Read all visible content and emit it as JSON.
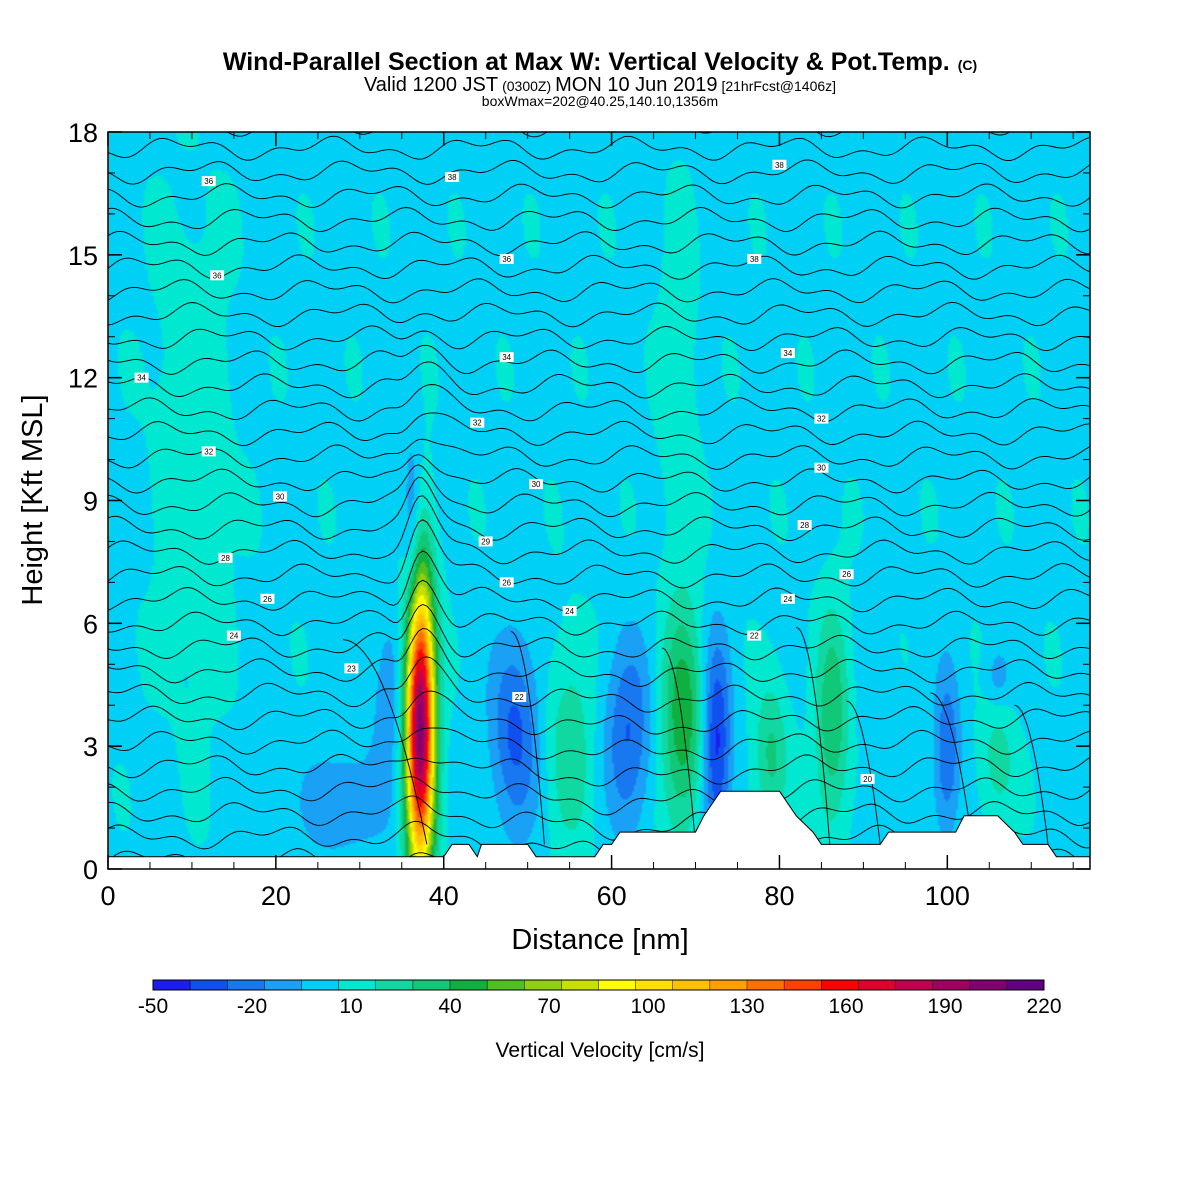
{
  "chart_data": {
    "type": "heatmap",
    "title": "Wind-Parallel Section at Max W: Vertical Velocity & Pot.Temp.",
    "title_mark": "(C)",
    "valid_main": "Valid 1200 JST",
    "valid_utc": "(0300Z)",
    "valid_date": "MON 10 Jun 2019",
    "forecast": "[21hrFcst@1406z]",
    "box_info": "boxWmax=202@40.25,140.10,1356m",
    "xlabel": "Distance [nm]",
    "ylabel": "Height [Kft MSL]",
    "xlim": [
      0,
      117
    ],
    "ylim": [
      0,
      18
    ],
    "x_ticks": [
      "0",
      "20",
      "40",
      "60",
      "80",
      "100"
    ],
    "y_ticks": [
      "0",
      "3",
      "6",
      "9",
      "12",
      "15",
      "18"
    ],
    "colorbar": {
      "label": "Vertical Velocity [cm/s]",
      "tick_labels": [
        "-50",
        "-20",
        "10",
        "40",
        "70",
        "100",
        "130",
        "160",
        "190",
        "220"
      ],
      "colors": [
        "#1c1cf0",
        "#1050f0",
        "#1878f0",
        "#1aa0f5",
        "#00d0f5",
        "#00e8d0",
        "#10d8a0",
        "#10c878",
        "#10b040",
        "#50c020",
        "#90d010",
        "#c8e000",
        "#ffff00",
        "#ffe000",
        "#ffc000",
        "#ffa000",
        "#ff7000",
        "#ff4000",
        "#ff0000",
        "#e00030",
        "#c00050",
        "#a00060",
        "#800070",
        "#600080"
      ]
    },
    "theta_labels": [
      {
        "x": 12,
        "y": 16.8,
        "text": "36"
      },
      {
        "x": 41,
        "y": 16.9,
        "text": "38"
      },
      {
        "x": 80,
        "y": 17.2,
        "text": "38"
      },
      {
        "x": 13,
        "y": 14.5,
        "text": "36"
      },
      {
        "x": 47.5,
        "y": 14.9,
        "text": "36"
      },
      {
        "x": 77,
        "y": 14.9,
        "text": "38"
      },
      {
        "x": 4,
        "y": 12.0,
        "text": "34"
      },
      {
        "x": 47.5,
        "y": 12.5,
        "text": "34"
      },
      {
        "x": 81,
        "y": 12.6,
        "text": "34"
      },
      {
        "x": 44,
        "y": 10.9,
        "text": "32"
      },
      {
        "x": 85,
        "y": 11.0,
        "text": "32"
      },
      {
        "x": 12,
        "y": 10.2,
        "text": "32"
      },
      {
        "x": 51,
        "y": 9.4,
        "text": "30"
      },
      {
        "x": 85,
        "y": 9.8,
        "text": "30"
      },
      {
        "x": 20.5,
        "y": 9.1,
        "text": "30"
      },
      {
        "x": 45,
        "y": 8.0,
        "text": "29"
      },
      {
        "x": 83,
        "y": 8.4,
        "text": "28"
      },
      {
        "x": 14,
        "y": 7.6,
        "text": "28"
      },
      {
        "x": 47.5,
        "y": 7.0,
        "text": "26"
      },
      {
        "x": 88,
        "y": 7.2,
        "text": "26"
      },
      {
        "x": 19,
        "y": 6.6,
        "text": "26"
      },
      {
        "x": 55,
        "y": 6.3,
        "text": "24"
      },
      {
        "x": 81,
        "y": 6.6,
        "text": "24"
      },
      {
        "x": 15,
        "y": 5.7,
        "text": "24"
      },
      {
        "x": 77,
        "y": 5.7,
        "text": "22"
      },
      {
        "x": 29,
        "y": 4.9,
        "text": "23"
      },
      {
        "x": 49,
        "y": 4.2,
        "text": "22"
      },
      {
        "x": 90.5,
        "y": 2.2,
        "text": "20"
      }
    ],
    "w_features": [
      {
        "x": 37.2,
        "y": 3.5,
        "sx": 1.2,
        "sy": 2.5,
        "w": 202
      },
      {
        "x": 36.2,
        "y": 8.2,
        "sx": 0.8,
        "sy": 1.6,
        "w": -28
      },
      {
        "x": 33.5,
        "y": 4.2,
        "sx": 1.5,
        "sy": 1.4,
        "w": -18
      },
      {
        "x": 28,
        "y": 1.6,
        "sx": 3.5,
        "sy": 0.9,
        "w": -20
      },
      {
        "x": 48.5,
        "y": 3.3,
        "sx": 2.0,
        "sy": 1.7,
        "w": -35
      },
      {
        "x": 55,
        "y": 3.0,
        "sx": 2.0,
        "sy": 1.8,
        "w": 22
      },
      {
        "x": 62,
        "y": 3.3,
        "sx": 2.0,
        "sy": 1.6,
        "w": -32
      },
      {
        "x": 68.5,
        "y": 3.6,
        "sx": 1.8,
        "sy": 1.9,
        "w": 45
      },
      {
        "x": 72.5,
        "y": 3.0,
        "sx": 1.2,
        "sy": 1.8,
        "w": -48
      },
      {
        "x": 79,
        "y": 2.7,
        "sx": 1.4,
        "sy": 1.3,
        "w": 28
      },
      {
        "x": 86.3,
        "y": 3.6,
        "sx": 1.4,
        "sy": 1.9,
        "w": 35
      },
      {
        "x": 92,
        "y": 3.2,
        "sx": 1.8,
        "sy": 1.4,
        "w": -6
      },
      {
        "x": 100,
        "y": 2.8,
        "sx": 1.1,
        "sy": 1.4,
        "w": -32
      },
      {
        "x": 106,
        "y": 4.7,
        "sx": 1.0,
        "sy": 0.5,
        "w": -15
      },
      {
        "x": 106,
        "y": 2.6,
        "sx": 1.5,
        "sy": 1.0,
        "w": 20
      },
      {
        "x": 38.5,
        "y": 17.0,
        "sx": 0.6,
        "sy": 1.2,
        "w": -8
      },
      {
        "x": 68,
        "y": 11.5,
        "sx": 1.5,
        "sy": 3.0,
        "w": 12
      },
      {
        "x": 10,
        "y": 10,
        "sx": 3.0,
        "sy": 4.0,
        "w": 12
      }
    ],
    "terrain": [
      [
        0,
        0.3
      ],
      [
        40,
        0.3
      ],
      [
        41,
        0.6
      ],
      [
        43,
        0.6
      ],
      [
        44,
        0.3
      ],
      [
        44.5,
        0.6
      ],
      [
        50,
        0.6
      ],
      [
        51,
        0.3
      ],
      [
        58,
        0.3
      ],
      [
        59,
        0.6
      ],
      [
        60,
        0.6
      ],
      [
        61,
        0.9
      ],
      [
        70,
        0.9
      ],
      [
        71,
        1.3
      ],
      [
        72,
        1.6
      ],
      [
        73,
        1.9
      ],
      [
        80,
        1.9
      ],
      [
        81,
        1.6
      ],
      [
        82,
        1.3
      ],
      [
        84,
        0.9
      ],
      [
        85,
        0.6
      ],
      [
        92,
        0.6
      ],
      [
        93,
        0.9
      ],
      [
        101,
        0.9
      ],
      [
        102,
        1.3
      ],
      [
        106,
        1.3
      ],
      [
        107,
        1.1
      ],
      [
        108,
        0.9
      ],
      [
        109,
        0.6
      ],
      [
        112,
        0.6
      ],
      [
        113,
        0.3
      ],
      [
        117,
        0.3
      ]
    ]
  }
}
